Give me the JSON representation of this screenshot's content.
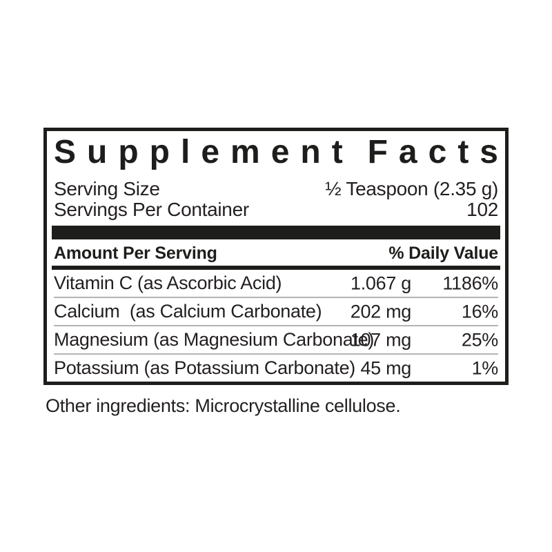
{
  "label": {
    "title": "Supplement Facts",
    "title_word1": "Supplement",
    "title_word2": "Facts",
    "serving_size_label": "Serving Size",
    "serving_size_value": "½ Teaspoon (2.35 g)",
    "servings_per_container_label": "Servings Per Container",
    "servings_per_container_value": "102",
    "header": {
      "amount_label": "Amount Per Serving",
      "daily_value_label": "% Daily Value"
    },
    "rows": [
      {
        "name": "Vitamin C (as Ascorbic Acid)",
        "amount": "1.067 g",
        "dv": "1186%"
      },
      {
        "name": "Calcium  (as Calcium Carbonate)",
        "amount": "202 mg",
        "dv": "16%"
      },
      {
        "name": "Magnesium (as Magnesium Carbonate)",
        "amount": "107 mg",
        "dv": "25%"
      },
      {
        "name": "Potassium (as Potassium Carbonate)",
        "amount": "45 mg",
        "dv": "1%"
      }
    ],
    "other_ingredients": "Other ingredients: Microcrystalline cellulose.",
    "colors": {
      "text": "#231f20",
      "rule_black": "#1d1d1b",
      "divider_gray": "#b3b3b3",
      "background": "#ffffff"
    }
  }
}
